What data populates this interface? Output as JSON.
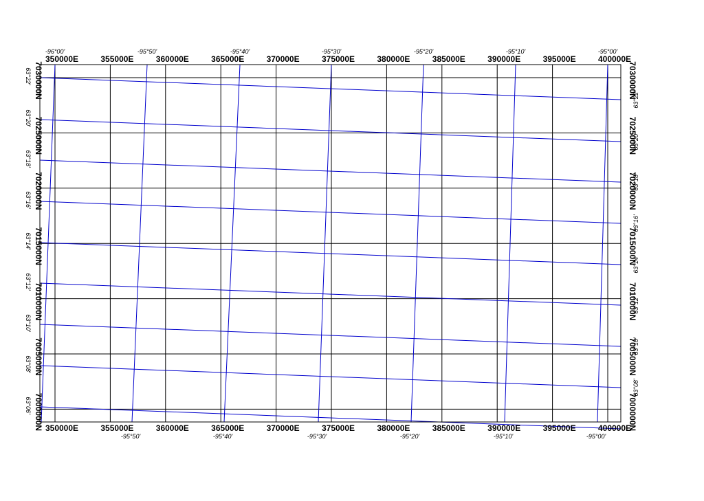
{
  "map": {
    "colors": {
      "utm_grid": "#000000",
      "geo_graticule": "#0000cc",
      "frame": "#000000",
      "background": "#ffffff"
    },
    "utm_eastings": [
      "350000E",
      "355000E",
      "360000E",
      "365000E",
      "370000E",
      "375000E",
      "380000E",
      "385000E",
      "390000E",
      "395000E",
      "400000E"
    ],
    "utm_northings": [
      "7030000N",
      "7025000N",
      "7020000N",
      "7015000N",
      "7010000N",
      "7005000N",
      "7000000N"
    ],
    "longitudes_top": [
      "-96°00'",
      "-95°50'",
      "-95°40'",
      "-95°30'",
      "-95°20'",
      "-95°10'",
      "-95°00'"
    ],
    "longitudes_bottom": [
      "-95°50'",
      "-95°40'",
      "-95°30'",
      "-95°20'",
      "-95°10'",
      "-95°00'"
    ],
    "latitudes_left": [
      "63°22'",
      "63°20'",
      "63°18'",
      "63°16'",
      "63°14'",
      "63°12'",
      "63°10'",
      "63°08'",
      "63°06'"
    ],
    "latitudes_right": [
      "63°22'",
      "63°20'",
      "63°18'",
      "63°16'",
      "63°14'",
      "63°12'",
      "63°10'",
      "63°08'"
    ]
  }
}
